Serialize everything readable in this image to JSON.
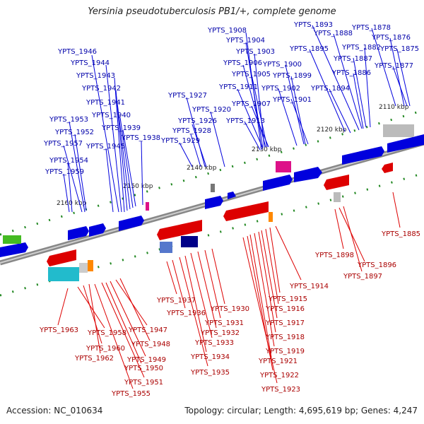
{
  "title": "Yersinia pseudotuberculosis PB1/+, complete genome",
  "footer": {
    "accession": "Accession: NC_010634",
    "summary": "Topology: circular; Length: 4,695,619 bp; Genes: 4,247"
  },
  "colors": {
    "forward": "#0000dd",
    "reverse": "#dd0000",
    "backbone": "#888888",
    "gc_marker": "#228822"
  },
  "ticks": [
    "2110 kbp",
    "2120 kbp",
    "2130 kbp",
    "2140 kbp",
    "2150 kbp",
    "2160 kbp"
  ],
  "forward_genes": [
    "YPTS_1946",
    "YPTS_1944",
    "YPTS_1943",
    "YPTS_1942",
    "YPTS_1941",
    "YPTS_1940",
    "YPTS_1939",
    "YPTS_1945",
    "YPTS_1938",
    "YPTS_1953",
    "YPTS_1952",
    "YPTS_1957",
    "YPTS_1954",
    "YPTS_1959",
    "YPTS_1927",
    "YPTS_1926",
    "YPTS_1920",
    "YPTS_1928",
    "YPTS_1929",
    "YPTS_1908",
    "YPTS_1904",
    "YPTS_1903",
    "YPTS_1906",
    "YPTS_1905",
    "YPTS_1911",
    "YPTS_1907",
    "YPTS_1913",
    "YPTS_1900",
    "YPTS_1899",
    "YPTS_1902",
    "YPTS_1901",
    "YPTS_1893",
    "YPTS_1888",
    "YPTS_1895",
    "YPTS_1882",
    "YPTS_1887",
    "YPTS_1886",
    "YPTS_1894",
    "YPTS_1878",
    "YPTS_1876",
    "YPTS_1875",
    "YPTS_1877"
  ],
  "reverse_genes": [
    "YPTS_1885",
    "YPTS_1898",
    "YPTS_1896",
    "YPTS_1897",
    "YPTS_1914",
    "YPTS_1915",
    "YPTS_1916",
    "YPTS_1917",
    "YPTS_1918",
    "YPTS_1919",
    "YPTS_1921",
    "YPTS_1922",
    "YPTS_1923",
    "YPTS_1937",
    "YPTS_1936",
    "YPTS_1930",
    "YPTS_1931",
    "YPTS_1932",
    "YPTS_1933",
    "YPTS_1934",
    "YPTS_1935",
    "YPTS_1963",
    "YPTS_1958",
    "YPTS_1947",
    "YPTS_1960",
    "YPTS_1948",
    "YPTS_1962",
    "YPTS_1949",
    "YPTS_1950",
    "YPTS_1951",
    "YPTS_1955"
  ]
}
